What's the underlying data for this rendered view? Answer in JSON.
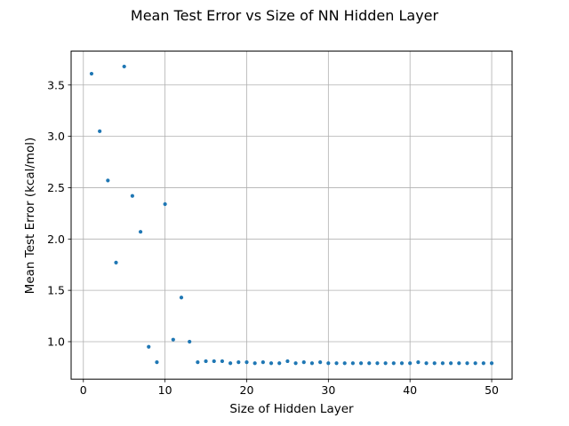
{
  "chart_data": {
    "type": "scatter",
    "title": "Mean Test Error vs Size of NN Hidden Layer",
    "xlabel": "Size of Hidden Layer",
    "ylabel": "Mean Test Error (kcal/mol)",
    "xlim": [
      -1.5,
      52.5
    ],
    "ylim": [
      0.635,
      3.83
    ],
    "xticks": [
      0,
      10,
      20,
      30,
      40,
      50
    ],
    "yticks": [
      1.0,
      1.5,
      2.0,
      2.5,
      3.0,
      3.5
    ],
    "xtick_labels": [
      "0",
      "10",
      "20",
      "30",
      "40",
      "50"
    ],
    "ytick_labels": [
      "1.0",
      "1.5",
      "2.0",
      "2.5",
      "3.0",
      "3.5"
    ],
    "grid": true,
    "marker_color": "#1f77b4",
    "x": [
      1,
      2,
      3,
      4,
      5,
      6,
      7,
      8,
      9,
      10,
      11,
      12,
      13,
      14,
      15,
      16,
      17,
      18,
      19,
      20,
      21,
      22,
      23,
      24,
      25,
      26,
      27,
      28,
      29,
      30,
      31,
      32,
      33,
      34,
      35,
      36,
      37,
      38,
      39,
      40,
      41,
      42,
      43,
      44,
      45,
      46,
      47,
      48,
      49,
      50
    ],
    "y": [
      3.61,
      3.05,
      2.57,
      1.77,
      3.68,
      2.42,
      2.07,
      0.95,
      0.8,
      2.34,
      1.02,
      1.43,
      1.0,
      0.8,
      0.81,
      0.81,
      0.81,
      0.79,
      0.8,
      0.8,
      0.79,
      0.8,
      0.79,
      0.79,
      0.81,
      0.79,
      0.8,
      0.79,
      0.8,
      0.79,
      0.79,
      0.79,
      0.79,
      0.79,
      0.79,
      0.79,
      0.79,
      0.79,
      0.79,
      0.79,
      0.8,
      0.79,
      0.79,
      0.79,
      0.79,
      0.79,
      0.79,
      0.79,
      0.79,
      0.79
    ]
  }
}
